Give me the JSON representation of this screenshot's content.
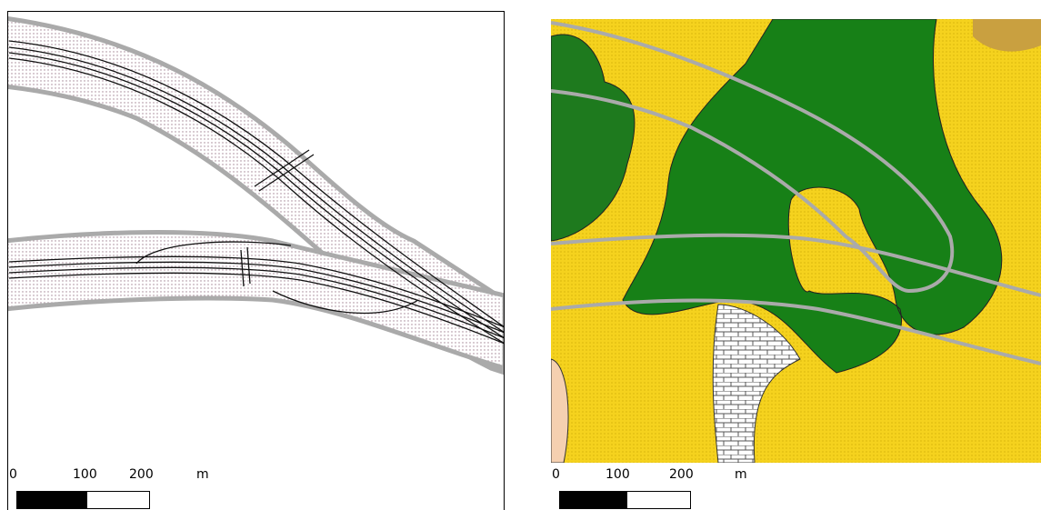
{
  "panels": [
    {
      "scale_bar": {
        "labels": [
          "0",
          "100",
          "200"
        ],
        "unit": "m"
      }
    },
    {
      "scale_bar": {
        "labels": [
          "0",
          "100",
          "200"
        ],
        "unit": "m"
      }
    }
  ]
}
